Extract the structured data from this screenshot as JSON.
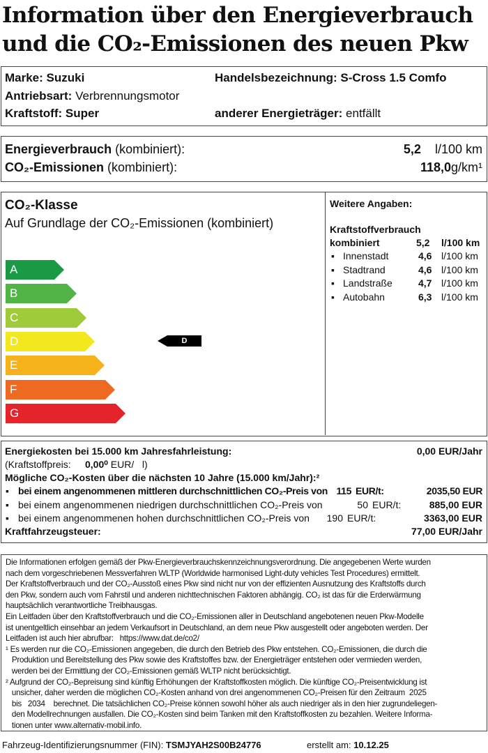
{
  "title": {
    "line1": "Information über den Energieverbrauch",
    "line2": "und die CO₂-Emissionen des neuen Pkw"
  },
  "vehicle": {
    "brand_label": "Marke:",
    "brand": "Suzuki",
    "trade_label": "Handelsbezeichnung:",
    "trade": "S-Cross 1.5 Comfo",
    "drive_label": "Antriebsart:",
    "drive": "Verbrennungsmotor",
    "fuel_label": "Kraftstoff:",
    "fuel": "Super",
    "other_label": "anderer Energieträger:",
    "other": "entfällt"
  },
  "consumption": {
    "energy_label": "Energieverbrauch",
    "energy_suffix": "(kombiniert):",
    "energy_value": "5,2",
    "energy_unit": "l/100 km",
    "co2_label": "CO₂-Emissionen",
    "co2_suffix": "(kombiniert):",
    "co2_value": "118,0",
    "co2_unit": "g/km¹"
  },
  "co2class": {
    "title": "CO₂-Klasse",
    "subtitle": "Auf Grundlage der CO₂-Emissionen (kombiniert)",
    "classes": [
      {
        "letter": "A",
        "color": "#1a9a45"
      },
      {
        "letter": "B",
        "color": "#52b447"
      },
      {
        "letter": "C",
        "color": "#9fcb3b"
      },
      {
        "letter": "D",
        "color": "#f3e71e"
      },
      {
        "letter": "E",
        "color": "#f6b21a"
      },
      {
        "letter": "F",
        "color": "#ee6a22"
      },
      {
        "letter": "G",
        "color": "#e5232b"
      }
    ],
    "current": "D"
  },
  "more": {
    "title": "Weitere Angaben:",
    "heading": "Kraftstoffverbrauch",
    "combined_label": "kombiniert",
    "combined_value": "5,2",
    "combined_unit": "l/100 km",
    "items": [
      {
        "label": "Innenstadt",
        "value": "4,6",
        "unit": "l/100 km"
      },
      {
        "label": "Stadtrand",
        "value": "4,6",
        "unit": "l/100 km"
      },
      {
        "label": "Landstraße",
        "value": "4,7",
        "unit": "l/100 km"
      },
      {
        "label": "Autobahn",
        "value": "6,3",
        "unit": "l/100 km"
      }
    ]
  },
  "costs": {
    "energy_label": "Energiekosten bei 15.000 km Jahresfahrleistung:",
    "energy_value": "0,00 EUR/Jahr",
    "fuelprice_label": "(Kraftstoffpreis:",
    "fuelprice_value": "0,00⁰",
    "fuelprice_unit": "EUR/   l)",
    "co2_heading": "Mögliche CO₂-Kosten über die nächsten 10 Jahre (15.000 km/Jahr):²",
    "scenarios": [
      {
        "text": "bei einem angenommenen mittleren durchschnittlichen CO₂-Preis von",
        "price": "115",
        "unit": "EUR/t:",
        "value": "2035,50 EUR"
      },
      {
        "text": "bei einem angenommenen niedrigen durchschnittlichen CO₂-Preis von",
        "price": "50",
        "unit": "EUR/t:",
        "value": "885,00 EUR"
      },
      {
        "text": "bei einem angenommenen hohen durchschnittlichen CO₂-Preis von",
        "price": "190",
        "unit": "EUR/t:",
        "value": "3363,00 EUR"
      }
    ],
    "tax_label": "Kraftfahrzeugsteuer:",
    "tax_value": "77,00 EUR/Jahr"
  },
  "footnotes": [
    "Die Informationen erfolgen gemäß der Pkw-Energieverbrauchskennzeichnungsverordnung. Die angegebenen Werte wurden",
    "nach dem vorgeschriebenen Messverfahren WLTP (Worldwide harmonised Light-duty vehicles Test Procedures) ermittelt.",
    "Der Kraftstoffverbrauch und der CO₂-Ausstoß eines Pkw sind nicht nur von der effizienten Ausnutzung des Kraftstoffs durch",
    "den Pkw, sondern auch vom Fahrstil und anderen nichttechnischen Faktoren abhängig. CO₂ ist das für die Erderwärmung",
    "hauptsächlich verantwortliche Treibhausgas.",
    "Ein Leitfaden über den Kraftstoffverbrauch und die CO₂-Emissionen aller in Deutschland angebotenen neuen Pkw-Modelle",
    "ist unentgeltlich einsehbar an jedem Verkaufsort in Deutschland, an dem neue Pkw ausgestellt oder angeboten werden. Der",
    "Leitfaden ist auch hier abrufbar:   https://www.dat.de/co2/",
    "¹ Es werden nur die CO₂-Emissionen angegeben, die durch den Betrieb des Pkw entstehen. CO₂-Emissionen, die durch die",
    "   Produktion und Bereitstellung des Pkw sowie des Kraftstoffes bzw. der Energieträger entstehen oder vermieden werden,",
    "   werden bei der Ermittlung der CO₂-Emissionen gemäß WLTP nicht berücksichtigt.",
    "² Aufgrund der CO₂-Bepreisung sind künftig Erhöhungen der Kraftstoffkosten möglich. Die künftige CO₂-Preisentwicklung ist",
    "   unsicher, daher werden die möglichen CO₂-Kosten anhand von drei angenommenen CO₂-Preisen für den Zeitraum  2025",
    "   bis   2034    berechnet. Die tatsächlichen CO₂-Preise können sowohl höher als auch niedriger als in den hier zugrundeliegen-",
    "   den Modellrechnungen ausfallen. Die CO₂-Kosten sind beim Tanken mit den Kraftstoffkosten zu bezahlen. Weitere Informa-",
    "   tionen unter www.alternativ-mobil.info."
  ],
  "footer": {
    "fin_label": "Fahrzeug-Identifizierungsnummer (FIN):",
    "fin": "TSMJYAH2S00B24776",
    "date_label": "erstellt am:",
    "date": "10.12.25"
  }
}
